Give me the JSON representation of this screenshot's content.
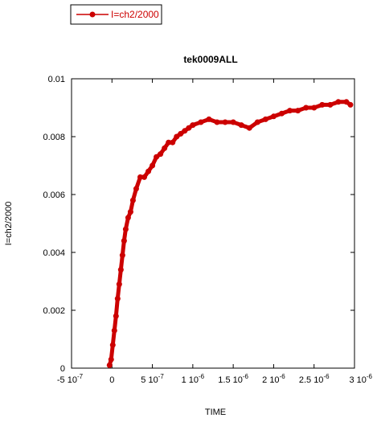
{
  "chart_data": {
    "type": "scatter",
    "title": "tek0009ALL",
    "xlabel": "TIME",
    "ylabel": "I=ch2/2000",
    "xlim": [
      -5e-07,
      3e-06
    ],
    "ylim": [
      0,
      0.01
    ],
    "grid": false,
    "legend_position": "top-left",
    "x_ticks": [
      {
        "value": -5e-07,
        "mantissa": "-5",
        "exp": "-7"
      },
      {
        "value": 0,
        "mantissa": "0",
        "exp": ""
      },
      {
        "value": 5e-07,
        "mantissa": "5",
        "exp": "-7"
      },
      {
        "value": 1e-06,
        "mantissa": "1",
        "exp": "-6"
      },
      {
        "value": 1.5e-06,
        "mantissa": "1.5",
        "exp": "-6"
      },
      {
        "value": 2e-06,
        "mantissa": "2",
        "exp": "-6"
      },
      {
        "value": 2.5e-06,
        "mantissa": "2.5",
        "exp": "-6"
      },
      {
        "value": 3e-06,
        "mantissa": "3",
        "exp": "-6"
      }
    ],
    "y_ticks": [
      {
        "value": 0,
        "label": "0"
      },
      {
        "value": 0.002,
        "label": "0.002"
      },
      {
        "value": 0.004,
        "label": "0.004"
      },
      {
        "value": 0.006,
        "label": "0.006"
      },
      {
        "value": 0.008,
        "label": "0.008"
      },
      {
        "value": 0.01,
        "label": "0.01"
      }
    ],
    "series": [
      {
        "name": "I=ch2/2000",
        "color": "#cc0000",
        "x": [
          -3e-08,
          -1e-08,
          1e-08,
          3e-08,
          5e-08,
          7e-08,
          9e-08,
          1.1e-07,
          1.3e-07,
          1.5e-07,
          1.7e-07,
          2e-07,
          2.3e-07,
          2.6e-07,
          3e-07,
          3.5e-07,
          4e-07,
          4.5e-07,
          5e-07,
          5.5e-07,
          6e-07,
          6.5e-07,
          7e-07,
          7.5e-07,
          8e-07,
          8.5e-07,
          9e-07,
          9.5e-07,
          1e-06,
          1.1e-06,
          1.2e-06,
          1.3e-06,
          1.4e-06,
          1.5e-06,
          1.6e-06,
          1.7e-06,
          1.8e-06,
          1.9e-06,
          2e-06,
          2.1e-06,
          2.2e-06,
          2.3e-06,
          2.4e-06,
          2.5e-06,
          2.6e-06,
          2.7e-06,
          2.8e-06,
          2.9e-06,
          2.95e-06
        ],
        "y": [
          0.0001,
          0.0003,
          0.0008,
          0.0013,
          0.0018,
          0.0024,
          0.0029,
          0.0034,
          0.0039,
          0.0044,
          0.0048,
          0.0052,
          0.0054,
          0.0058,
          0.0062,
          0.0066,
          0.0066,
          0.0068,
          0.007,
          0.0073,
          0.0074,
          0.0076,
          0.0078,
          0.0078,
          0.008,
          0.0081,
          0.0082,
          0.0083,
          0.0084,
          0.0085,
          0.0086,
          0.0085,
          0.0085,
          0.0085,
          0.0084,
          0.0083,
          0.0085,
          0.0086,
          0.0087,
          0.0088,
          0.0089,
          0.0089,
          0.009,
          0.009,
          0.0091,
          0.0091,
          0.0092,
          0.0092,
          0.0091
        ]
      }
    ]
  }
}
